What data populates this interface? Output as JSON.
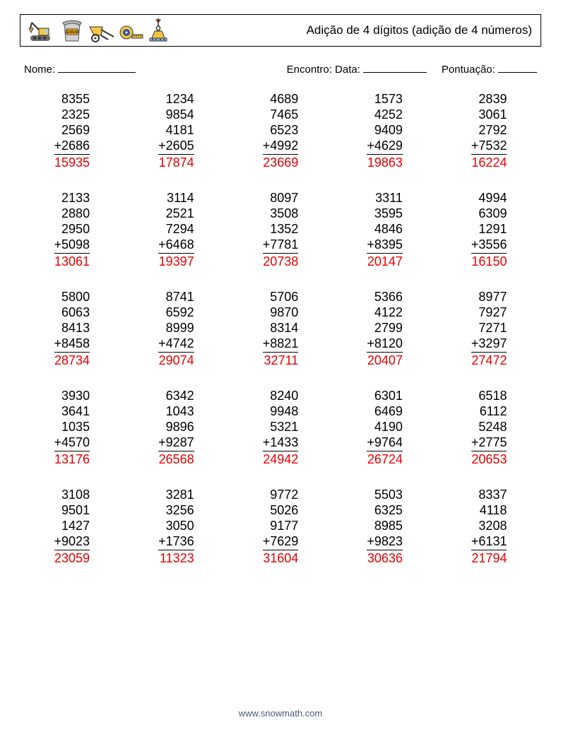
{
  "header": {
    "title": "Adição de 4 dígitos (adição de 4 números)"
  },
  "labels": {
    "name": "Nome:",
    "date_prefix": "Encontro: Data:",
    "score": "Pontuação:"
  },
  "footer": "www.snowmath.com",
  "style": {
    "answer_color": "#e60000",
    "text_color": "#000000",
    "font_size_problem": 18,
    "line_height": 22
  },
  "problems": [
    {
      "addends": [
        8355,
        2325,
        2569,
        2686
      ],
      "answer": 15935
    },
    {
      "addends": [
        1234,
        9854,
        4181,
        2605
      ],
      "answer": 17874
    },
    {
      "addends": [
        4689,
        7465,
        6523,
        4992
      ],
      "answer": 23669
    },
    {
      "addends": [
        1573,
        4252,
        9409,
        4629
      ],
      "answer": 19863
    },
    {
      "addends": [
        2839,
        3061,
        2792,
        7532
      ],
      "answer": 16224
    },
    {
      "addends": [
        2133,
        2880,
        2950,
        5098
      ],
      "answer": 13061
    },
    {
      "addends": [
        3114,
        2521,
        7294,
        6468
      ],
      "answer": 19397
    },
    {
      "addends": [
        8097,
        3508,
        1352,
        7781
      ],
      "answer": 20738
    },
    {
      "addends": [
        3311,
        3595,
        4846,
        8395
      ],
      "answer": 20147
    },
    {
      "addends": [
        4994,
        6309,
        1291,
        3556
      ],
      "answer": 16150
    },
    {
      "addends": [
        5800,
        6063,
        8413,
        8458
      ],
      "answer": 28734
    },
    {
      "addends": [
        8741,
        6592,
        8999,
        4742
      ],
      "answer": 29074
    },
    {
      "addends": [
        5706,
        9870,
        8314,
        8821
      ],
      "answer": 32711
    },
    {
      "addends": [
        5366,
        4122,
        2799,
        8120
      ],
      "answer": 20407
    },
    {
      "addends": [
        8977,
        7927,
        7271,
        3297
      ],
      "answer": 27472
    },
    {
      "addends": [
        3930,
        3641,
        1035,
        4570
      ],
      "answer": 13176
    },
    {
      "addends": [
        6342,
        1043,
        9896,
        9287
      ],
      "answer": 26568
    },
    {
      "addends": [
        8240,
        9948,
        5321,
        1433
      ],
      "answer": 24942
    },
    {
      "addends": [
        6301,
        6469,
        4190,
        9764
      ],
      "answer": 26724
    },
    {
      "addends": [
        6518,
        6112,
        5248,
        2775
      ],
      "answer": 20653
    },
    {
      "addends": [
        3108,
        9501,
        1427,
        9023
      ],
      "answer": 23059
    },
    {
      "addends": [
        3281,
        3256,
        3050,
        1736
      ],
      "answer": 11323
    },
    {
      "addends": [
        9772,
        5026,
        9177,
        7629
      ],
      "answer": 31604
    },
    {
      "addends": [
        5503,
        6325,
        8985,
        9823
      ],
      "answer": 30636
    },
    {
      "addends": [
        8337,
        4118,
        3208,
        6131
      ],
      "answer": 21794
    }
  ]
}
